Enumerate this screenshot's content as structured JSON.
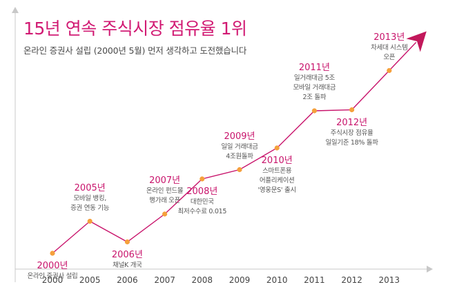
{
  "header": {
    "title": "15년 연속 주식시장 점유율 1위",
    "subtitle": "온라인 증권사 설립 (2000년 5월) 먼저 생각하고 도전했습니다"
  },
  "colors": {
    "accent": "#d11a73",
    "line": "#c8136b",
    "marker": "#f5a03c",
    "axis": "#c8c8c8",
    "arrow": "#c2185b"
  },
  "chart_data": {
    "type": "line",
    "title": "",
    "xlabel": "",
    "ylabel": "",
    "categories": [
      "2000",
      "2005",
      "2006",
      "2007",
      "2008",
      "2009",
      "2010",
      "2011",
      "2012",
      "2013"
    ],
    "values": [
      1.0,
      2.55,
      1.55,
      2.9,
      4.6,
      5.05,
      6.1,
      7.9,
      7.95,
      9.85
    ],
    "ylim": [
      0,
      13
    ],
    "grid": false,
    "legend": "none",
    "annotations": [
      {
        "year": "2000년",
        "lines": [
          "온라인 증권사 설립"
        ]
      },
      {
        "year": "2005년",
        "lines": [
          "모바일 뱅킹,",
          "증권 연동 기능"
        ]
      },
      {
        "year": "2006년",
        "lines": [
          "채널K 개국"
        ]
      },
      {
        "year": "2007년",
        "lines": [
          "온라인 펀드몰",
          "행가래 오픈"
        ]
      },
      {
        "year": "2008년",
        "lines": [
          "대한민국",
          "최저수수료 0.015"
        ]
      },
      {
        "year": "2009년",
        "lines": [
          "일일 거래대금",
          "4조원돌파"
        ]
      },
      {
        "year": "2010년",
        "lines": [
          "스마트폰용",
          "어플리케이션",
          "'영웅문S' 출시"
        ]
      },
      {
        "year": "2011년",
        "lines": [
          "일거래대금 5조",
          "모바일 거래대금",
          "2조 돌파"
        ]
      },
      {
        "year": "2012년",
        "lines": [
          "주식시장 점유율",
          "일일기준 18% 돌파"
        ]
      },
      {
        "year": "2013년",
        "lines": [
          "차세대 시스템",
          "오픈"
        ]
      }
    ]
  }
}
